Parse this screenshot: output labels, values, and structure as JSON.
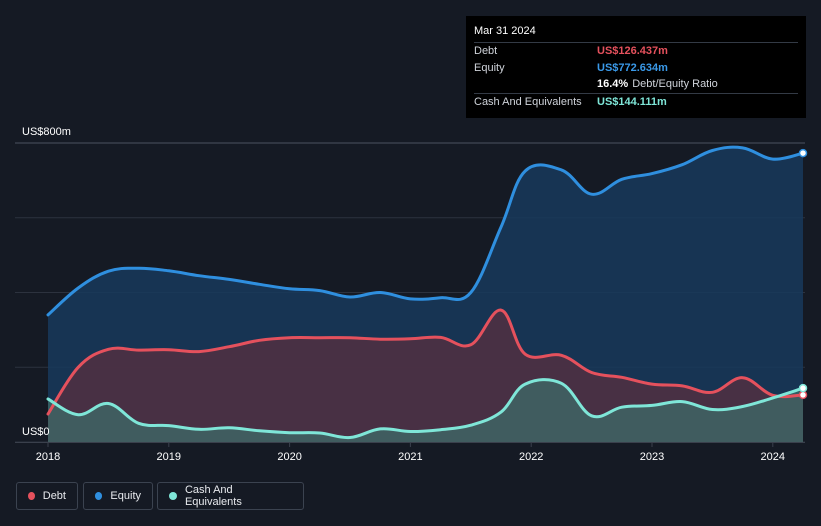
{
  "tooltip": {
    "date": "Mar 31 2024",
    "debt_label": "Debt",
    "debt_value": "US$126.437m",
    "equity_label": "Equity",
    "equity_value": "US$772.634m",
    "ratio_value": "16.4%",
    "ratio_label": "Debt/Equity Ratio",
    "cash_label": "Cash And Equivalents",
    "cash_value": "US$144.111m"
  },
  "legend": {
    "debt": "Debt",
    "equity": "Equity",
    "cash": "Cash And Equivalents"
  },
  "colors": {
    "debt": "#e5515d",
    "equity": "#2f8fdf",
    "cash": "#7fe6d8",
    "background": "#151a24"
  },
  "chart_data": {
    "type": "area",
    "title": "",
    "xlabel": "",
    "ylabel": "",
    "y_label_top": "US$800m",
    "y_label_bottom": "US$0",
    "ylim": [
      0,
      800
    ],
    "xlim": [
      2018.0,
      2024.25
    ],
    "x_ticks": [
      2018,
      2019,
      2020,
      2021,
      2022,
      2023,
      2024
    ],
    "x_tick_labels": [
      "2018",
      "2019",
      "2020",
      "2021",
      "2022",
      "2023",
      "2024"
    ],
    "grid": true,
    "series": [
      {
        "name": "Equity",
        "points": [
          [
            2018.0,
            340
          ],
          [
            2018.25,
            412
          ],
          [
            2018.5,
            457
          ],
          [
            2018.75,
            465
          ],
          [
            2019.0,
            458
          ],
          [
            2019.25,
            445
          ],
          [
            2019.5,
            435
          ],
          [
            2019.75,
            422
          ],
          [
            2020.0,
            410
          ],
          [
            2020.25,
            405
          ],
          [
            2020.5,
            388
          ],
          [
            2020.75,
            400
          ],
          [
            2021.0,
            383
          ],
          [
            2021.25,
            386
          ],
          [
            2021.5,
            400
          ],
          [
            2021.75,
            575
          ],
          [
            2021.95,
            725
          ],
          [
            2022.25,
            728
          ],
          [
            2022.5,
            663
          ],
          [
            2022.75,
            703
          ],
          [
            2023.0,
            718
          ],
          [
            2023.25,
            742
          ],
          [
            2023.5,
            780
          ],
          [
            2023.75,
            787
          ],
          [
            2024.0,
            757
          ],
          [
            2024.25,
            773
          ]
        ]
      },
      {
        "name": "Debt",
        "points": [
          [
            2018.0,
            75
          ],
          [
            2018.25,
            200
          ],
          [
            2018.5,
            248
          ],
          [
            2018.75,
            246
          ],
          [
            2019.0,
            247
          ],
          [
            2019.25,
            242
          ],
          [
            2019.5,
            255
          ],
          [
            2019.75,
            272
          ],
          [
            2020.0,
            279
          ],
          [
            2020.25,
            279
          ],
          [
            2020.5,
            279
          ],
          [
            2020.75,
            275
          ],
          [
            2021.0,
            276
          ],
          [
            2021.25,
            280
          ],
          [
            2021.5,
            260
          ],
          [
            2021.75,
            353
          ],
          [
            2021.95,
            235
          ],
          [
            2022.25,
            232
          ],
          [
            2022.5,
            186
          ],
          [
            2022.75,
            173
          ],
          [
            2023.0,
            155
          ],
          [
            2023.25,
            150
          ],
          [
            2023.5,
            133
          ],
          [
            2023.75,
            172
          ],
          [
            2024.0,
            125
          ],
          [
            2024.25,
            126
          ]
        ]
      },
      {
        "name": "Cash And Equivalents",
        "points": [
          [
            2018.0,
            115
          ],
          [
            2018.25,
            73
          ],
          [
            2018.5,
            103
          ],
          [
            2018.75,
            50
          ],
          [
            2019.0,
            44
          ],
          [
            2019.25,
            34
          ],
          [
            2019.5,
            38
          ],
          [
            2019.75,
            30
          ],
          [
            2020.0,
            25
          ],
          [
            2020.25,
            24
          ],
          [
            2020.5,
            12
          ],
          [
            2020.75,
            35
          ],
          [
            2021.0,
            28
          ],
          [
            2021.25,
            33
          ],
          [
            2021.5,
            45
          ],
          [
            2021.75,
            80
          ],
          [
            2021.95,
            155
          ],
          [
            2022.25,
            157
          ],
          [
            2022.5,
            70
          ],
          [
            2022.75,
            93
          ],
          [
            2023.0,
            98
          ],
          [
            2023.25,
            108
          ],
          [
            2023.5,
            87
          ],
          [
            2023.75,
            95
          ],
          [
            2024.0,
            118
          ],
          [
            2024.25,
            144
          ]
        ]
      }
    ]
  }
}
